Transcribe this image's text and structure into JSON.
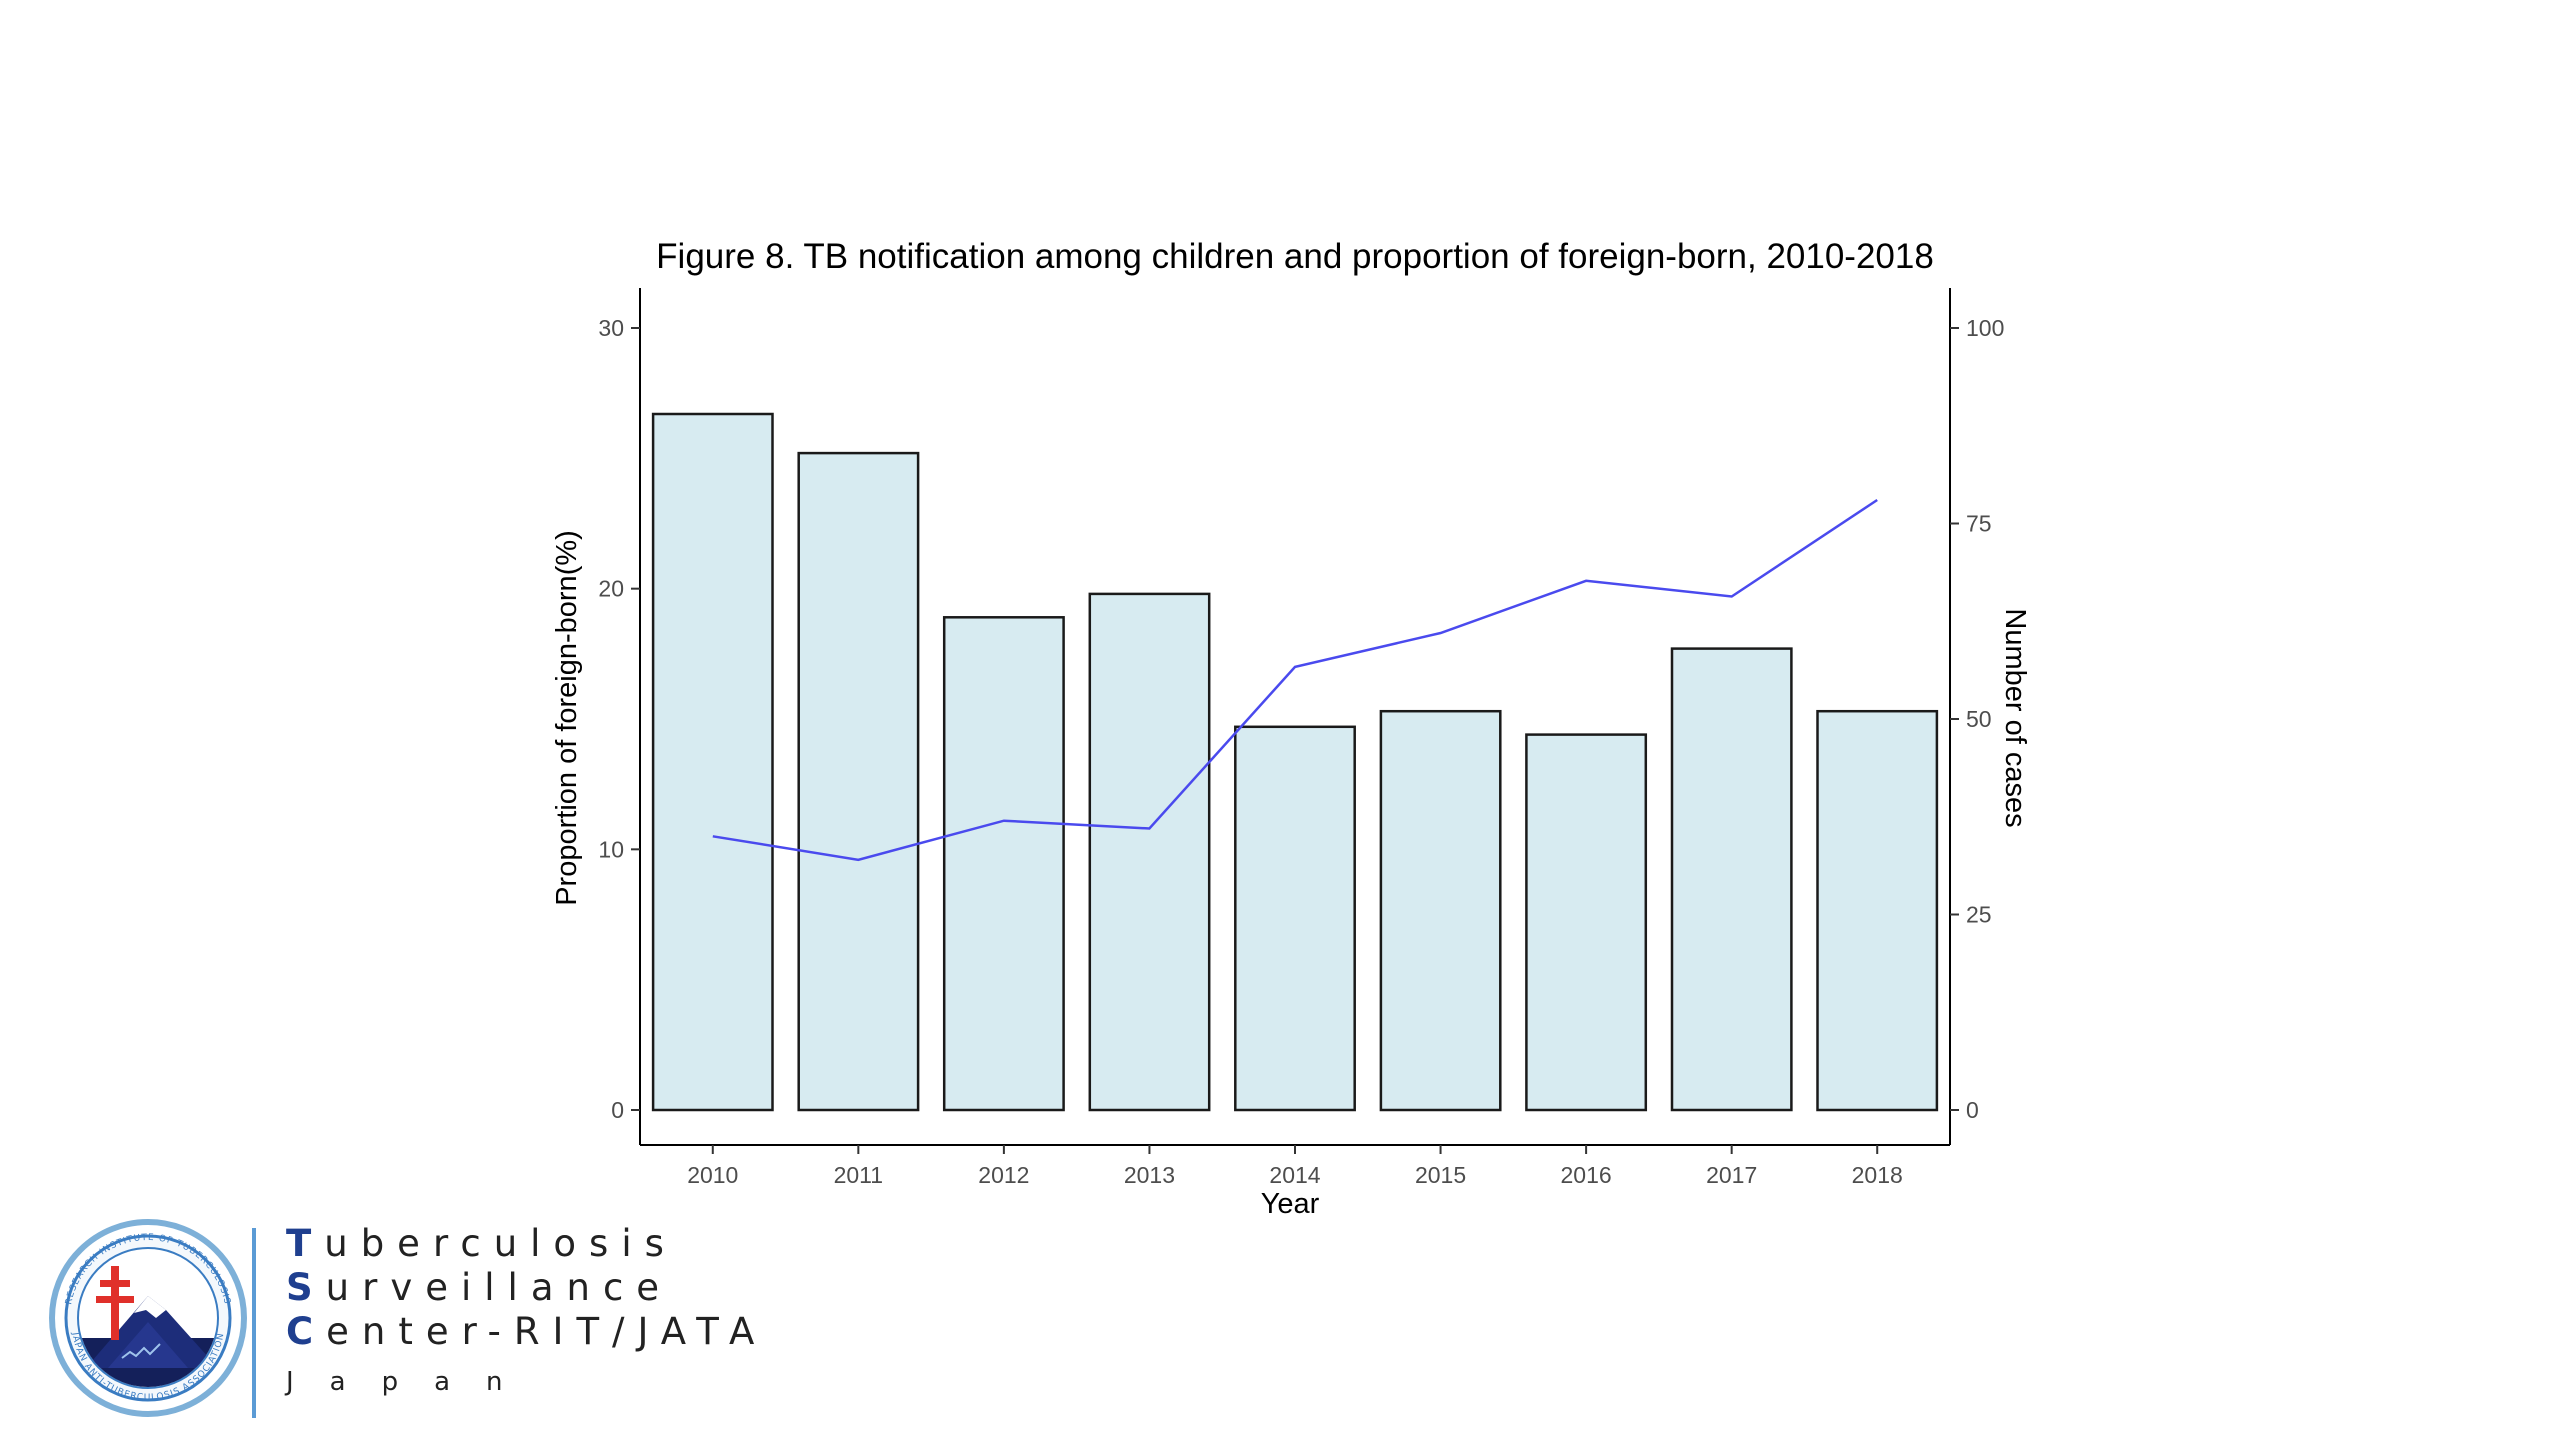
{
  "colors": {
    "bar_fill": "#d7ebf1",
    "bar_stroke": "#1a1a1a",
    "line": "#4a4aee",
    "logo_accent": "#1f3f8f",
    "divider": "#5b9bd5"
  },
  "chart_data": {
    "type": "bar",
    "title": "Figure 8. TB notification among children and proportion of foreign-born, 2010-2018",
    "xlabel": "Year",
    "ylabel_left": "Proportion of foreign-born(%)",
    "ylabel_right": "Number of cases",
    "categories": [
      "2010",
      "2011",
      "2012",
      "2013",
      "2014",
      "2015",
      "2016",
      "2017",
      "2018"
    ],
    "ylim_left": [
      0,
      30
    ],
    "ylim_right": [
      0,
      100
    ],
    "yticks_left": [
      0,
      10,
      20,
      30
    ],
    "yticks_right": [
      0,
      25,
      50,
      75,
      100
    ],
    "grid": false,
    "series": [
      {
        "name": "Number of cases",
        "type": "bar",
        "axis": "right",
        "values": [
          89,
          84,
          63,
          66,
          49,
          51,
          48,
          59,
          51
        ]
      },
      {
        "name": "Proportion of foreign-born(%)",
        "type": "line",
        "axis": "left",
        "values": [
          10.5,
          9.6,
          11.1,
          10.8,
          17.0,
          18.3,
          20.3,
          19.7,
          23.4
        ]
      }
    ]
  },
  "logo": {
    "lines": [
      {
        "cap": "T",
        "rest": "uberculosis"
      },
      {
        "cap": "S",
        "rest": "urveillance"
      },
      {
        "cap": "C",
        "rest": "enter-RIT/JATA"
      }
    ],
    "country": "Japan",
    "emblem": "jata-institute-seal-icon"
  }
}
